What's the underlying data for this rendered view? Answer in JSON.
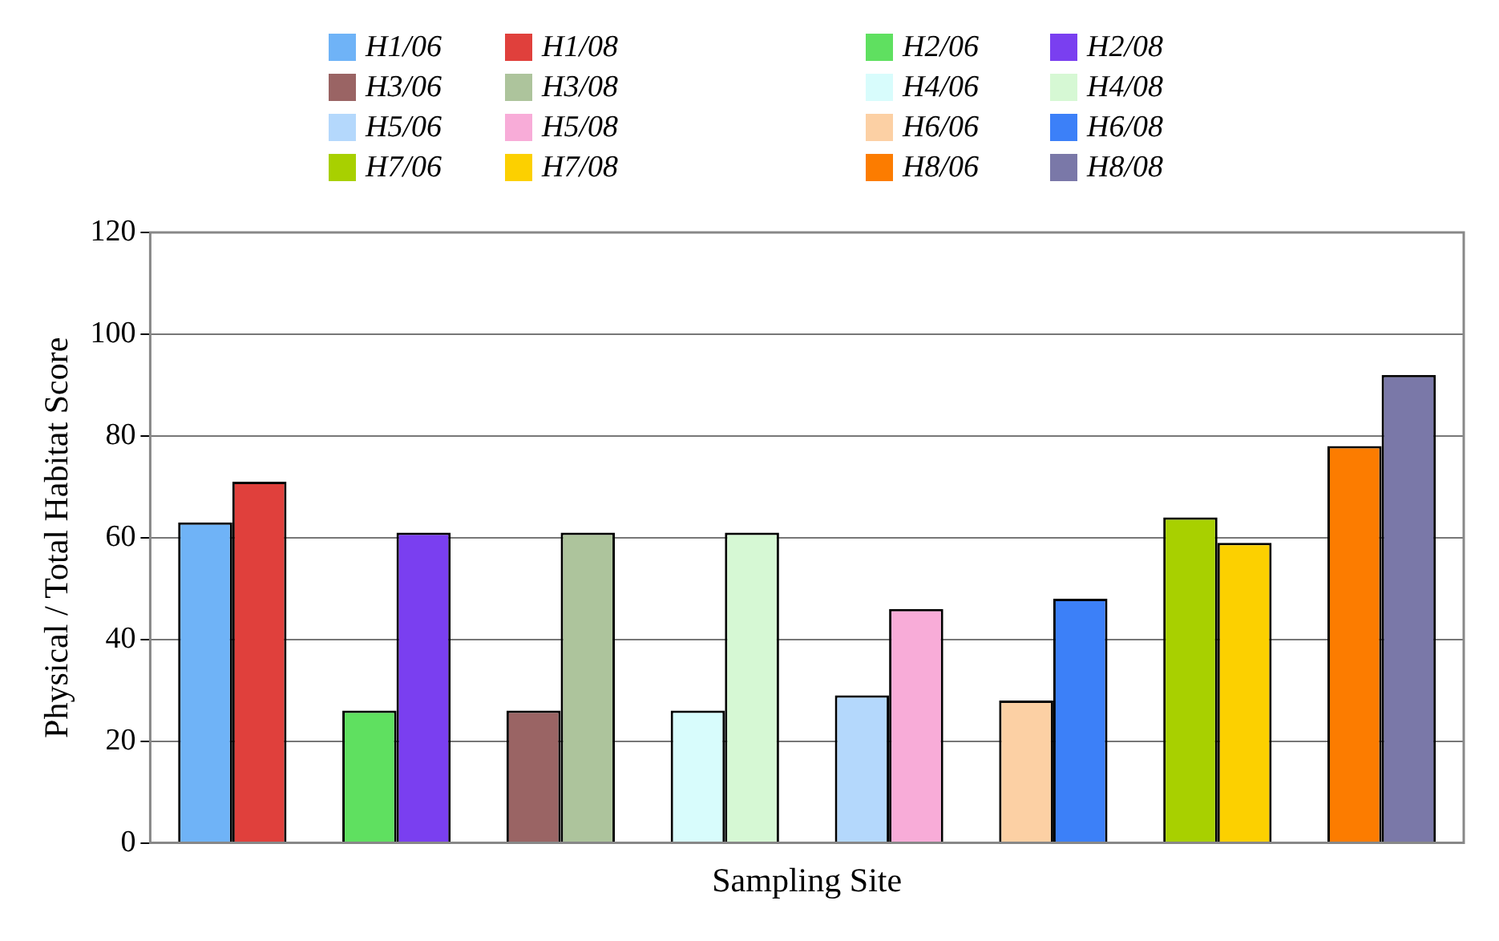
{
  "chart_data": {
    "type": "bar",
    "xlabel": "Sampling Site",
    "ylabel": "Physical / Total Habitat Score",
    "categories": [
      null,
      null,
      null,
      null,
      null,
      null,
      null,
      null
    ],
    "series": [
      {
        "name": "H1/06",
        "color": "#6fb3f7",
        "values": [
          63,
          null,
          null,
          null,
          null,
          null,
          null,
          null
        ]
      },
      {
        "name": "H1/08",
        "color": "#e0403c",
        "values": [
          71,
          null,
          null,
          null,
          null,
          null,
          null,
          null
        ]
      },
      {
        "name": "H2/06",
        "color": "#5fe060",
        "values": [
          null,
          26,
          null,
          null,
          null,
          null,
          null,
          null
        ]
      },
      {
        "name": "H2/08",
        "color": "#7a3ff0",
        "values": [
          null,
          61,
          null,
          null,
          null,
          null,
          null,
          null
        ]
      },
      {
        "name": "H3/06",
        "color": "#9a6464",
        "values": [
          null,
          null,
          26,
          null,
          null,
          null,
          null,
          null
        ]
      },
      {
        "name": "H3/08",
        "color": "#adc49c",
        "values": [
          null,
          null,
          61,
          null,
          null,
          null,
          null,
          null
        ]
      },
      {
        "name": "H4/06",
        "color": "#d8fcfc",
        "values": [
          null,
          null,
          null,
          26,
          null,
          null,
          null,
          null
        ]
      },
      {
        "name": "H4/08",
        "color": "#d6f8d4",
        "values": [
          null,
          null,
          null,
          61,
          null,
          null,
          null,
          null
        ]
      },
      {
        "name": "H5/06",
        "color": "#b4d8fc",
        "values": [
          null,
          null,
          null,
          null,
          29,
          null,
          null,
          null
        ]
      },
      {
        "name": "H5/08",
        "color": "#f8acd8",
        "values": [
          null,
          null,
          null,
          null,
          46,
          null,
          null,
          null
        ]
      },
      {
        "name": "H6/06",
        "color": "#fcd0a4",
        "values": [
          null,
          null,
          null,
          null,
          null,
          28,
          null,
          null
        ]
      },
      {
        "name": "H6/08",
        "color": "#3c80f8",
        "values": [
          null,
          null,
          null,
          null,
          null,
          48,
          null,
          null
        ]
      },
      {
        "name": "H7/06",
        "color": "#a8d000",
        "values": [
          null,
          null,
          null,
          null,
          null,
          null,
          64,
          null
        ]
      },
      {
        "name": "H7/08",
        "color": "#fcd000",
        "values": [
          null,
          null,
          null,
          null,
          null,
          null,
          59,
          null
        ]
      },
      {
        "name": "H8/06",
        "color": "#fc7c00",
        "values": [
          null,
          null,
          null,
          null,
          null,
          null,
          null,
          78
        ]
      },
      {
        "name": "H8/08",
        "color": "#7a78a8",
        "values": [
          null,
          null,
          null,
          null,
          null,
          null,
          null,
          92
        ]
      }
    ],
    "ylim": [
      0,
      120
    ],
    "yticks": [
      0,
      20,
      40,
      60,
      80,
      100,
      120
    ],
    "grid": "y",
    "legend": "top",
    "tick_labels": "y"
  }
}
